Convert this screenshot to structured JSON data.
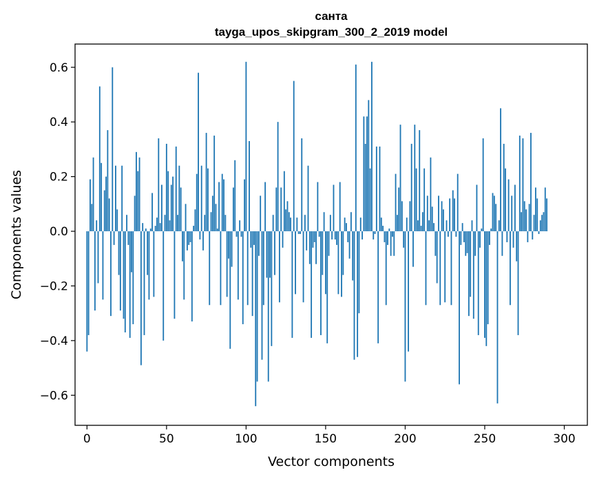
{
  "chart_data": {
    "type": "bar",
    "title": "санта",
    "subtitle": "tayga_upos_skipgram_300_2_2019 model",
    "xlabel": "Vector components",
    "ylabel": "Components values",
    "xlim": [
      -7.5,
      314.5
    ],
    "ylim": [
      -0.71,
      0.685
    ],
    "x_ticks": [
      0,
      50,
      100,
      150,
      200,
      250,
      300
    ],
    "x_tick_labels": [
      "0",
      "50",
      "100",
      "150",
      "200",
      "250",
      "300"
    ],
    "y_ticks": [
      -0.6,
      -0.4,
      -0.2,
      0.0,
      0.2,
      0.4,
      0.6
    ],
    "y_tick_labels": [
      "−0.6",
      "−0.4",
      "−0.2",
      "0.0",
      "0.2",
      "0.4",
      "0.6"
    ],
    "bar_color": "#1f77b4",
    "grid": false,
    "values": [
      -0.44,
      -0.38,
      0.19,
      0.1,
      0.27,
      -0.29,
      0.04,
      -0.19,
      0.53,
      0.25,
      -0.25,
      0.15,
      0.2,
      0.37,
      0.12,
      -0.31,
      0.6,
      -0.05,
      0.24,
      0.08,
      -0.16,
      -0.29,
      0.24,
      -0.32,
      -0.37,
      0.06,
      -0.05,
      -0.39,
      -0.15,
      -0.34,
      0.13,
      0.29,
      0.22,
      0.27,
      -0.49,
      0.03,
      -0.38,
      0.01,
      -0.16,
      -0.25,
      0.01,
      0.14,
      -0.24,
      0.02,
      0.05,
      0.34,
      0.03,
      0.17,
      -0.4,
      0.06,
      0.32,
      0.22,
      0.04,
      0.17,
      0.2,
      -0.32,
      0.31,
      0.06,
      0.24,
      0.16,
      -0.11,
      -0.25,
      0.1,
      -0.07,
      -0.05,
      -0.04,
      -0.33,
      0.02,
      0.08,
      0.21,
      0.58,
      -0.03,
      0.24,
      -0.07,
      0.06,
      0.36,
      0.23,
      -0.27,
      0.07,
      0.13,
      0.35,
      0.1,
      0.01,
      0.18,
      -0.27,
      0.21,
      0.19,
      0.06,
      -0.24,
      -0.1,
      -0.43,
      -0.13,
      0.16,
      0.26,
      -0.02,
      -0.25,
      0.04,
      -0.02,
      -0.34,
      0.19,
      0.62,
      -0.27,
      0.33,
      -0.06,
      -0.31,
      -0.05,
      -0.64,
      -0.55,
      -0.09,
      0.13,
      -0.47,
      -0.27,
      0.18,
      -0.17,
      -0.55,
      -0.17,
      -0.42,
      0.06,
      -0.16,
      0.16,
      0.4,
      -0.26,
      0.16,
      -0.06,
      0.22,
      0.08,
      0.11,
      0.07,
      0.05,
      -0.39,
      0.55,
      -0.23,
      0.05,
      -0.01,
      -0.01,
      0.34,
      -0.26,
      0.06,
      -0.07,
      0.24,
      -0.12,
      -0.39,
      -0.06,
      -0.04,
      -0.12,
      0.18,
      -0.02,
      -0.38,
      -0.16,
      0.07,
      -0.23,
      -0.41,
      -0.09,
      0.06,
      -0.03,
      0.17,
      -0.03,
      -0.05,
      -0.23,
      0.18,
      -0.24,
      -0.16,
      0.05,
      0.03,
      -0.04,
      -0.1,
      0.07,
      -0.18,
      -0.47,
      0.61,
      -0.46,
      -0.3,
      0.05,
      -0.03,
      0.42,
      0.32,
      0.42,
      0.48,
      0.23,
      0.62,
      -0.03,
      -0.01,
      0.31,
      -0.41,
      0.31,
      0.05,
      0.02,
      -0.04,
      -0.27,
      -0.05,
      0.01,
      -0.09,
      -0.02,
      -0.09,
      0.21,
      0.06,
      0.16,
      0.39,
      0.11,
      -0.06,
      -0.55,
      0.05,
      -0.44,
      0.11,
      0.32,
      -0.13,
      0.39,
      0.23,
      0.04,
      0.37,
      0.02,
      0.07,
      0.23,
      -0.27,
      0.13,
      0.04,
      0.27,
      0.09,
      0.03,
      -0.09,
      -0.19,
      0.13,
      -0.27,
      0.11,
      0.08,
      -0.26,
      0.04,
      -0.02,
      0.12,
      -0.27,
      0.15,
      0.12,
      -0.02,
      0.21,
      -0.56,
      -0.05,
      0.03,
      -0.04,
      -0.09,
      -0.08,
      -0.31,
      -0.24,
      0.04,
      -0.32,
      -0.09,
      0.17,
      -0.38,
      -0.06,
      0.01,
      0.34,
      -0.39,
      -0.42,
      -0.34,
      -0.05,
      0.01,
      0.14,
      0.13,
      0.1,
      -0.63,
      0.04,
      0.45,
      -0.09,
      0.32,
      0.23,
      -0.04,
      0.19,
      -0.27,
      0.13,
      -0.06,
      0.17,
      -0.11,
      -0.38,
      0.35,
      0.07,
      0.34,
      0.11,
      0.08,
      -0.04,
      0.1,
      0.36,
      -0.03,
      0.06,
      0.16,
      0.12,
      -0.01,
      0.04,
      0.06,
      0.07,
      0.16,
      0.12
    ]
  }
}
